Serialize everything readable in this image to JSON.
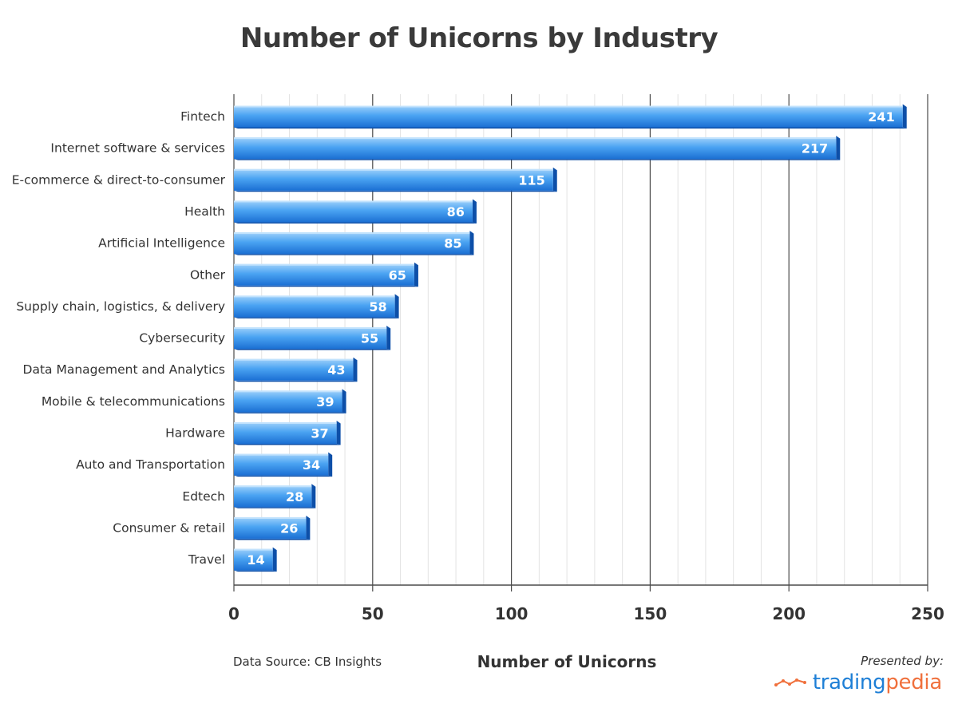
{
  "title": "Number of Unicorns by Industry",
  "source": "Data Source: CB Insights",
  "presented_by": "Presented by:",
  "brand": {
    "part1": "trading",
    "part2": "pedia",
    "color1": "#1e7fd6",
    "color2": "#f0703c",
    "logo_icon": "line-chart-icon"
  },
  "colors": {
    "bar_light": "#8cc8fb",
    "bar_mid": "#3d9bf0",
    "bar_dark": "#1464c6",
    "bar_side": "#0d4fa8",
    "grid": "#e3e3e3"
  },
  "chart_data": {
    "type": "bar",
    "orientation": "horizontal",
    "title": "Number of Unicorns by Industry",
    "xlabel": "Number of Unicorns",
    "ylabel": "",
    "xlim": [
      0,
      250
    ],
    "xticks": [
      0,
      50,
      100,
      150,
      200,
      250
    ],
    "grid": true,
    "categories": [
      "Fintech",
      "Internet software & services",
      "E-commerce & direct-to-consumer",
      "Health",
      "Artificial Intelligence",
      "Other",
      "Supply chain, logistics, & delivery",
      "Cybersecurity",
      "Data Management and Analytics",
      "Mobile & telecommunications",
      "Hardware",
      "Auto and Transportation",
      "Edtech",
      "Consumer & retail",
      "Travel"
    ],
    "values": [
      241,
      217,
      115,
      86,
      85,
      65,
      58,
      55,
      43,
      39,
      37,
      34,
      28,
      26,
      14
    ]
  }
}
